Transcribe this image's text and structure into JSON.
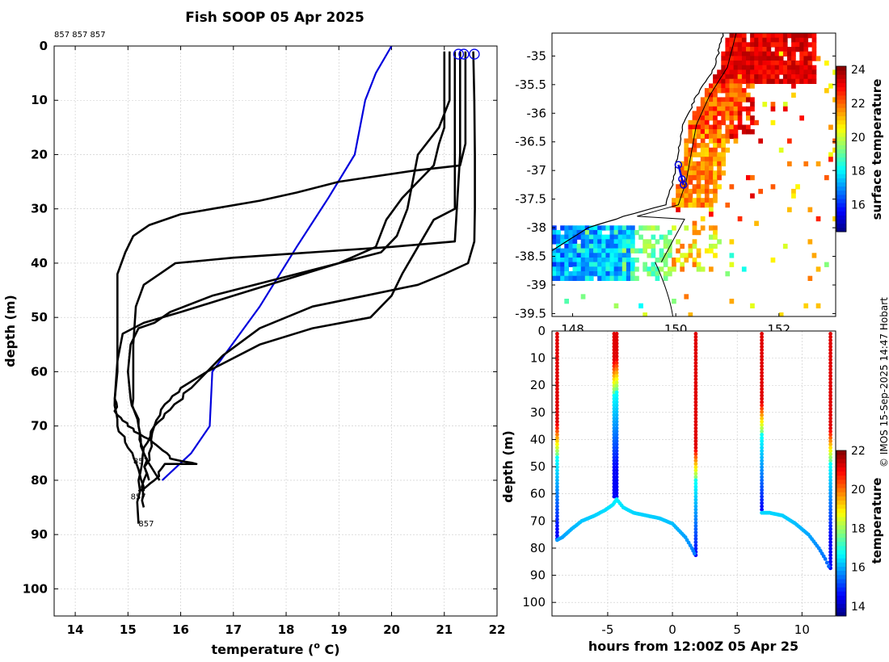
{
  "title": "Fish SOOP 05 Apr 2025",
  "credit": "© IMOS 15-Sep-2025 14:47 Hobart",
  "chart_data": [
    {
      "type": "line",
      "panel": "profiles",
      "xlabel": "temperature (o C)",
      "xlabel_main": "temperature (",
      "xlabel_sup": "o",
      "xlabel_tail": " C)",
      "ylabel": "depth (m)",
      "xlim": [
        13.6,
        22
      ],
      "ylim": [
        0,
        105
      ],
      "xticks": [
        14,
        15,
        16,
        17,
        18,
        19,
        20,
        21,
        22
      ],
      "yticks": [
        0,
        10,
        20,
        30,
        40,
        50,
        60,
        70,
        80,
        90,
        100
      ],
      "top_annotation": "857 857 857",
      "profile_labels": [
        {
          "text": "857",
          "t": 15.1,
          "d": 77
        },
        {
          "text": "857",
          "t": 15.05,
          "d": 83.5
        },
        {
          "text": "857",
          "t": 15.2,
          "d": 88.5
        }
      ],
      "series": [
        {
          "name": "climatology",
          "color": "#0000dd",
          "points": [
            [
              20.0,
              0
            ],
            [
              19.7,
              5
            ],
            [
              19.5,
              10
            ],
            [
              19.3,
              20
            ],
            [
              18.8,
              28
            ],
            [
              18.2,
              37
            ],
            [
              17.5,
              48
            ],
            [
              16.6,
              60
            ],
            [
              16.55,
              70
            ],
            [
              16.2,
              75
            ],
            [
              15.65,
              80
            ]
          ]
        },
        {
          "name": "profile-1",
          "color": "#000000",
          "points": [
            [
              21.55,
              1
            ],
            [
              21.57,
              10
            ],
            [
              21.58,
              20
            ],
            [
              21.58,
              30
            ],
            [
              21.57,
              36
            ],
            [
              21.45,
              40
            ],
            [
              21.0,
              42
            ],
            [
              20.5,
              44
            ],
            [
              19.5,
              46
            ],
            [
              18.5,
              48
            ],
            [
              17.5,
              52
            ],
            [
              16.8,
              57
            ],
            [
              16.2,
              63
            ],
            [
              15.8,
              67
            ],
            [
              15.5,
              70
            ],
            [
              15.3,
              74
            ],
            [
              15.2,
              80
            ],
            [
              15.2,
              88
            ]
          ]
        },
        {
          "name": "profile-2",
          "color": "#000000",
          "points": [
            [
              21.4,
              1
            ],
            [
              21.4,
              18
            ],
            [
              21.3,
              22
            ],
            [
              20.4,
              23
            ],
            [
              19.0,
              25
            ],
            [
              18.2,
              27
            ],
            [
              17.5,
              28.5
            ],
            [
              16.6,
              30
            ],
            [
              16.0,
              31
            ],
            [
              15.4,
              33
            ],
            [
              15.1,
              35
            ],
            [
              14.95,
              38
            ],
            [
              14.8,
              42
            ],
            [
              14.8,
              50
            ],
            [
              14.8,
              60
            ],
            [
              14.75,
              65
            ],
            [
              14.8,
              68
            ],
            [
              15.0,
              70
            ],
            [
              15.3,
              72
            ],
            [
              15.6,
              74
            ],
            [
              15.8,
              76
            ],
            [
              16.3,
              77
            ],
            [
              15.7,
              77
            ],
            [
              15.5,
              80
            ],
            [
              15.2,
              82
            ]
          ]
        },
        {
          "name": "profile-3",
          "color": "#000000",
          "points": [
            [
              21.3,
              1
            ],
            [
              21.3,
              20
            ],
            [
              21.2,
              36
            ],
            [
              20.0,
              37
            ],
            [
              18.5,
              38
            ],
            [
              17.0,
              39
            ],
            [
              15.9,
              40
            ],
            [
              15.6,
              42
            ],
            [
              15.3,
              44
            ],
            [
              15.15,
              48
            ],
            [
              15.1,
              55
            ],
            [
              15.1,
              65
            ],
            [
              15.2,
              70
            ],
            [
              15.3,
              75
            ],
            [
              15.4,
              80
            ]
          ]
        },
        {
          "name": "profile-4",
          "color": "#000000",
          "points": [
            [
              21.1,
              1
            ],
            [
              21.1,
              10
            ],
            [
              20.9,
              15
            ],
            [
              20.5,
              20
            ],
            [
              20.3,
              30
            ],
            [
              20.1,
              35
            ],
            [
              19.8,
              38
            ],
            [
              19.0,
              40
            ],
            [
              17.8,
              43
            ],
            [
              16.6,
              46
            ],
            [
              15.8,
              49
            ],
            [
              15.5,
              51
            ],
            [
              15.2,
              52
            ],
            [
              15.05,
              55
            ],
            [
              15.0,
              60
            ],
            [
              15.05,
              65
            ],
            [
              15.2,
              70
            ],
            [
              15.3,
              75
            ],
            [
              15.6,
              80
            ]
          ]
        },
        {
          "name": "profile-5",
          "color": "#000000",
          "points": [
            [
              21.0,
              1
            ],
            [
              21.0,
              15
            ],
            [
              20.9,
              18
            ],
            [
              20.8,
              22
            ],
            [
              20.5,
              25
            ],
            [
              20.2,
              28
            ],
            [
              19.9,
              32
            ],
            [
              19.7,
              37
            ],
            [
              19.0,
              40
            ],
            [
              18.0,
              43
            ],
            [
              17.0,
              46
            ],
            [
              16.0,
              49
            ],
            [
              15.3,
              51
            ],
            [
              14.9,
              53
            ],
            [
              14.8,
              58
            ],
            [
              14.75,
              65
            ],
            [
              14.8,
              70
            ],
            [
              15.0,
              74
            ],
            [
              15.2,
              78
            ],
            [
              15.3,
              82
            ]
          ]
        },
        {
          "name": "profile-6",
          "color": "#000000",
          "points": [
            [
              21.2,
              1
            ],
            [
              21.2,
              25
            ],
            [
              21.2,
              30
            ],
            [
              20.8,
              32
            ],
            [
              20.5,
              37
            ],
            [
              20.2,
              42
            ],
            [
              20.0,
              46
            ],
            [
              19.6,
              50
            ],
            [
              18.5,
              52
            ],
            [
              17.5,
              55
            ],
            [
              16.5,
              60
            ],
            [
              16.0,
              63
            ],
            [
              15.7,
              66
            ],
            [
              15.5,
              70
            ],
            [
              15.4,
              75
            ],
            [
              15.3,
              80
            ],
            [
              15.3,
              85
            ]
          ]
        }
      ],
      "markers": [
        {
          "t": 21.27,
          "d": 1.5
        },
        {
          "t": 21.37,
          "d": 1.5
        },
        {
          "t": 21.57,
          "d": 1.5
        }
      ]
    },
    {
      "type": "heatmap",
      "panel": "surface-map",
      "colorbar_label": "surface temperature",
      "clim": [
        14.4,
        24.2
      ],
      "colorbar_ticks": [
        16,
        18,
        20,
        22,
        24
      ],
      "xlim": [
        147.6,
        153.1
      ],
      "ylim": [
        -39.55,
        -34.6
      ],
      "xticks": [
        148,
        150,
        152
      ],
      "yticks": [
        -35,
        -35.5,
        -36,
        -36.5,
        -37,
        -37.5,
        -38,
        -38.5,
        -39,
        -39.5
      ],
      "track": [
        [
          150.05,
          -36.9
        ],
        [
          150.12,
          -37.15
        ],
        [
          150.15,
          -37.25
        ]
      ]
    },
    {
      "type": "scatter",
      "panel": "time-depth",
      "xlabel": "hours from 12:00Z 05 Apr 25",
      "ylabel": "depth (m)",
      "colorbar_label": "temperature",
      "xlim": [
        -9.3,
        12.6
      ],
      "ylim": [
        0,
        105
      ],
      "xticks": [
        -5,
        0,
        5,
        10
      ],
      "yticks": [
        0,
        10,
        20,
        30,
        40,
        50,
        60,
        70,
        80,
        90,
        100
      ],
      "clim": [
        13.5,
        22
      ],
      "colorbar_ticks": [
        14,
        16,
        18,
        20,
        22
      ],
      "casts": [
        {
          "t": -8.9,
          "bottom": 77
        },
        {
          "t": -4.5,
          "bottom": 62
        },
        {
          "t": -4.3,
          "bottom": 62
        },
        {
          "t": 1.8,
          "bottom": 83
        },
        {
          "t": 6.9,
          "bottom": 67
        },
        {
          "t": 12.2,
          "bottom": 88
        }
      ]
    }
  ]
}
